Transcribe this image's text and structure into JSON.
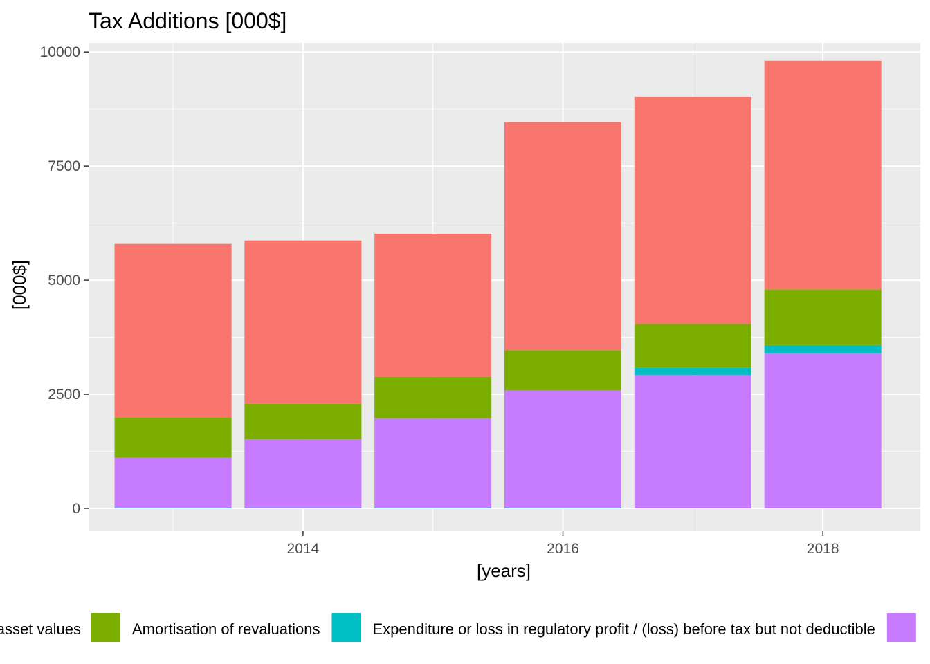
{
  "chart_data": {
    "type": "bar",
    "stacked": true,
    "title": "Tax Additions [000$]",
    "xlabel": "[years]",
    "ylabel": "[000$]",
    "x": [
      2013,
      2014,
      2015,
      2016,
      2017,
      2018
    ],
    "xlim": [
      2012.35,
      2018.75
    ],
    "ylim": [
      -500,
      10200
    ],
    "xticks": [
      2014,
      2016,
      2018
    ],
    "yticks": [
      0,
      2500,
      5000,
      7500,
      10000
    ],
    "grid": true,
    "legend_position": "bottom",
    "series": [
      {
        "name": "",
        "color": "#619cff",
        "values": [
          15,
          10,
          15,
          15,
          0,
          0
        ]
      },
      {
        "name": "",
        "color": "#c77cff",
        "values": [
          1100,
          1510,
          1960,
          2570,
          2920,
          3400
        ]
      },
      {
        "name": "Expenditure or loss in regulatory profit / (loss) before tax but not deductible",
        "color": "#00bfc4",
        "values": [
          0,
          0,
          0,
          0,
          160,
          180
        ]
      },
      {
        "name": "Amortisation of revaluations",
        "color": "#7cae00",
        "values": [
          870,
          770,
          910,
          880,
          960,
          1220
        ]
      },
      {
        "name": "",
        "color": "#f8766d",
        "values": [
          3810,
          3580,
          3130,
          5000,
          4980,
          5010
        ]
      }
    ],
    "legend": [
      {
        "label": "asset values",
        "color": "#f8766d"
      },
      {
        "label": "Amortisation of revaluations",
        "color": "#7cae00"
      },
      {
        "label": "Expenditure or loss in regulatory profit / (loss) before tax but not deductible",
        "color": "#00bfc4"
      },
      {
        "label": "",
        "color": "#c77cff"
      }
    ]
  }
}
